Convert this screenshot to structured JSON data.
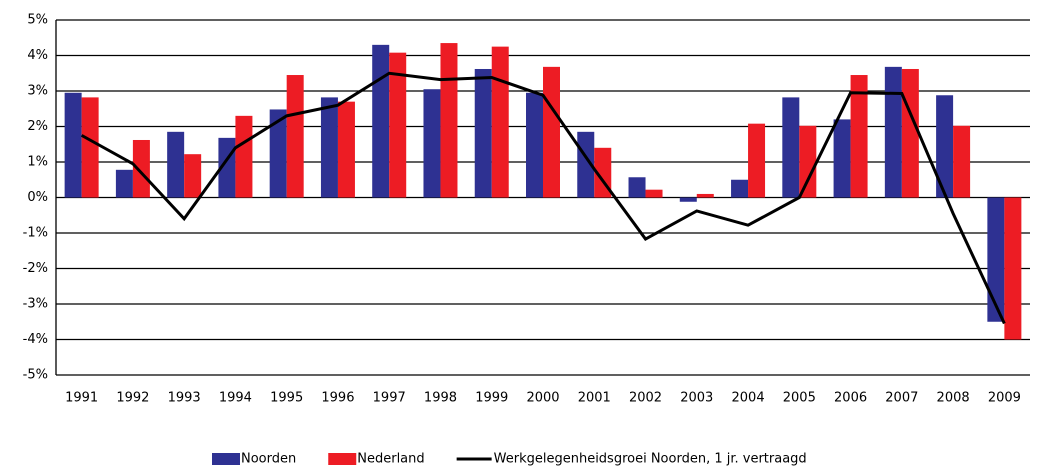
{
  "chart_data": {
    "type": "bar",
    "categories": [
      "1991",
      "1992",
      "1993",
      "1994",
      "1995",
      "1996",
      "1997",
      "1998",
      "1999",
      "2000",
      "2001",
      "2002",
      "2003",
      "2004",
      "2005",
      "2006",
      "2007",
      "2008",
      "2009"
    ],
    "series": [
      {
        "name": "Noorden",
        "type": "bar",
        "color": "#2e3192",
        "values": [
          2.95,
          0.78,
          1.85,
          1.68,
          2.48,
          2.82,
          4.3,
          3.05,
          3.62,
          2.95,
          1.85,
          0.57,
          -0.12,
          0.5,
          2.82,
          2.2,
          3.68,
          2.88,
          -3.5
        ]
      },
      {
        "name": "Nederland",
        "type": "bar",
        "color": "#ed1c24",
        "values": [
          2.82,
          1.62,
          1.22,
          2.3,
          3.45,
          2.7,
          4.08,
          4.35,
          4.25,
          3.68,
          1.4,
          0.22,
          0.1,
          2.08,
          2.02,
          3.45,
          3.62,
          2.02,
          -4.0
        ]
      },
      {
        "name": "Werkgelegenheidsgroei Noorden, 1 jr. vertraagd",
        "type": "line",
        "color": "#000000",
        "values": [
          1.75,
          0.95,
          -0.6,
          1.4,
          2.3,
          2.6,
          3.5,
          3.32,
          3.38,
          2.88,
          0.8,
          -1.17,
          -0.38,
          -0.78,
          0.0,
          2.95,
          2.93,
          -0.45,
          -3.55
        ]
      }
    ],
    "ylim": [
      -5,
      5
    ],
    "yticks": [
      {
        "value": -5,
        "label": "-5%"
      },
      {
        "value": -4,
        "label": "-4%"
      },
      {
        "value": -3,
        "label": "-3%"
      },
      {
        "value": -2,
        "label": "-2%"
      },
      {
        "value": -1,
        "label": "-1%"
      },
      {
        "value": 0,
        "label": "0%"
      },
      {
        "value": 1,
        "label": "1%"
      },
      {
        "value": 2,
        "label": "2%"
      },
      {
        "value": 3,
        "label": "3%"
      },
      {
        "value": 4,
        "label": "4%"
      },
      {
        "value": 5,
        "label": "5%"
      }
    ],
    "grid": true,
    "legend": "bottom"
  }
}
